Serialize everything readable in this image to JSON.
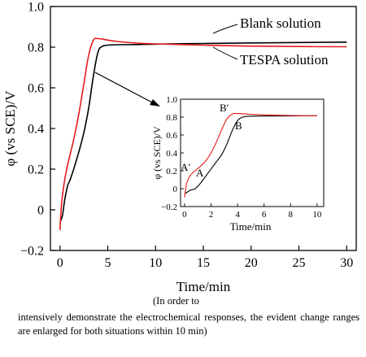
{
  "chart_data": [
    {
      "type": "line",
      "id": "main",
      "xlabel": "Time/min",
      "ylabel": "φ (vs SCE)/V",
      "xlim": [
        -1,
        31
      ],
      "ylim": [
        -0.2,
        1.0
      ],
      "xticks": [
        0,
        5,
        10,
        15,
        20,
        25,
        30
      ],
      "yticks": [
        -0.2,
        0.0,
        0.2,
        0.4,
        0.6,
        0.8,
        1.0
      ],
      "ytick_labels": [
        "−0.2",
        "0",
        "0.2",
        "0.4",
        "0.6",
        "0.8",
        "1.0"
      ],
      "grid": false,
      "series": [
        {
          "name": "Blank solution",
          "color": "#000000",
          "points": [
            [
              0.0,
              -0.06
            ],
            [
              0.25,
              -0.03
            ],
            [
              0.5,
              0.05
            ],
            [
              0.8,
              0.12
            ],
            [
              1.0,
              0.14
            ],
            [
              1.5,
              0.21
            ],
            [
              2.0,
              0.29
            ],
            [
              2.5,
              0.38
            ],
            [
              3.0,
              0.5
            ],
            [
              3.5,
              0.66
            ],
            [
              4.0,
              0.78
            ],
            [
              4.5,
              0.805
            ],
            [
              5.0,
              0.81
            ],
            [
              6.0,
              0.812
            ],
            [
              8.0,
              0.813
            ],
            [
              10.0,
              0.815
            ],
            [
              15.0,
              0.818
            ],
            [
              20.0,
              0.821
            ],
            [
              25.0,
              0.823
            ],
            [
              30.0,
              0.825
            ]
          ]
        },
        {
          "name": "TESPA solution",
          "color": "#e31b1b",
          "points": [
            [
              0.0,
              -0.1
            ],
            [
              0.15,
              0.02
            ],
            [
              0.4,
              0.12
            ],
            [
              0.7,
              0.2
            ],
            [
              1.0,
              0.26
            ],
            [
              1.5,
              0.36
            ],
            [
              2.0,
              0.48
            ],
            [
              2.5,
              0.62
            ],
            [
              3.0,
              0.76
            ],
            [
              3.5,
              0.835
            ],
            [
              4.0,
              0.842
            ],
            [
              5.0,
              0.835
            ],
            [
              6.0,
              0.828
            ],
            [
              8.0,
              0.82
            ],
            [
              10.0,
              0.816
            ],
            [
              15.0,
              0.81
            ],
            [
              20.0,
              0.805
            ],
            [
              25.0,
              0.803
            ],
            [
              30.0,
              0.802
            ]
          ]
        }
      ],
      "annotations": [
        "Blank solution",
        "TESPA solution"
      ]
    },
    {
      "type": "line",
      "id": "inset",
      "xlabel": "Time/min",
      "ylabel": "φ (vs SCE)/V",
      "xlim": [
        -0.3,
        10.5
      ],
      "ylim": [
        -0.2,
        1.0
      ],
      "xticks": [
        0,
        2,
        4,
        6,
        8,
        10
      ],
      "yticks": [
        -0.2,
        0.0,
        0.2,
        0.4,
        0.6,
        0.8,
        1.0
      ],
      "ytick_labels": [
        "−0.2",
        "0",
        "0.2",
        "0.4",
        "0.6",
        "0.8",
        "1.0"
      ],
      "grid": false,
      "series": [
        {
          "name": "Blank solution",
          "color": "#000000",
          "points": [
            [
              0.0,
              -0.06
            ],
            [
              0.4,
              -0.02
            ],
            [
              0.8,
              0.0
            ],
            [
              1.2,
              0.06
            ],
            [
              1.6,
              0.14
            ],
            [
              2.0,
              0.22
            ],
            [
              2.4,
              0.3
            ],
            [
              2.8,
              0.38
            ],
            [
              3.2,
              0.5
            ],
            [
              3.6,
              0.65
            ],
            [
              4.0,
              0.76
            ],
            [
              4.4,
              0.8
            ],
            [
              5.0,
              0.81
            ],
            [
              6.0,
              0.812
            ],
            [
              8.0,
              0.813
            ],
            [
              10.0,
              0.815
            ]
          ]
        },
        {
          "name": "TESPA solution",
          "color": "#e31b1b",
          "points": [
            [
              0.0,
              -0.1
            ],
            [
              0.15,
              0.05
            ],
            [
              0.4,
              0.14
            ],
            [
              0.8,
              0.2
            ],
            [
              1.2,
              0.25
            ],
            [
              1.6,
              0.31
            ],
            [
              2.0,
              0.4
            ],
            [
              2.4,
              0.52
            ],
            [
              2.8,
              0.66
            ],
            [
              3.2,
              0.78
            ],
            [
              3.6,
              0.835
            ],
            [
              4.0,
              0.84
            ],
            [
              5.0,
              0.832
            ],
            [
              6.0,
              0.825
            ],
            [
              8.0,
              0.818
            ],
            [
              10.0,
              0.815
            ]
          ]
        }
      ],
      "annotations": [
        "A",
        "A′",
        "B",
        "B′"
      ]
    }
  ],
  "caption": {
    "line1": "(In order to",
    "rest": "intensively demonstrate the electrochemical responses, the evident change ranges are enlarged for both situations within 10 min)"
  }
}
